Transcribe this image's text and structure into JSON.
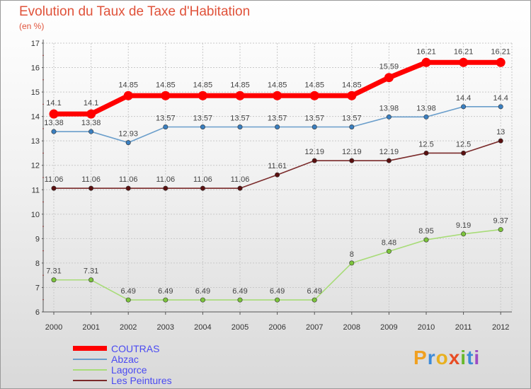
{
  "header": {
    "title": "Evolution du Taux de Taxe d'Habitation",
    "unit": "(en %)"
  },
  "logo": {
    "letters": [
      "P",
      "r",
      "o",
      "x",
      "i",
      "t",
      "i"
    ],
    "colors": [
      "#f0a020",
      "#3c8ad8",
      "#e8b020",
      "#e84c24",
      "#68b82c",
      "#3c8ad8",
      "#9c4cc4"
    ]
  },
  "chart_data": {
    "type": "line",
    "title": "Evolution du Taux de Taxe d'Habitation",
    "ylabel": "(en %)",
    "xlabel": "",
    "x": [
      "2000",
      "2001",
      "2002",
      "2003",
      "2004",
      "2005",
      "2006",
      "2007",
      "2008",
      "2009",
      "2010",
      "2011",
      "2012"
    ],
    "ylim": [
      6,
      17
    ],
    "yticks": [
      "6",
      "7",
      "8",
      "9",
      "10",
      "11",
      "12",
      "13",
      "14",
      "15",
      "16",
      "17"
    ],
    "grid": true,
    "legend_position": "bottom-left",
    "series": [
      {
        "name": "COUTRAS",
        "color": "#ff0000",
        "highlight": true,
        "values": [
          14.1,
          14.1,
          14.85,
          14.85,
          14.85,
          14.85,
          14.85,
          14.85,
          14.85,
          15.59,
          16.21,
          16.21,
          16.21
        ],
        "labels": [
          "14.1",
          "14.1",
          "14.85",
          "14.85",
          "14.85",
          "14.85",
          "14.85",
          "14.85",
          "14.85",
          "15.59",
          "16.21",
          "16.21",
          "16.21"
        ]
      },
      {
        "name": "Abzac",
        "color": "#6a9ecb",
        "marker": "#3a7fc0",
        "values": [
          13.38,
          13.38,
          12.93,
          13.57,
          13.57,
          13.57,
          13.57,
          13.57,
          13.57,
          13.98,
          13.98,
          14.4,
          14.4
        ],
        "labels": [
          "13.38",
          "13.38",
          "12.93",
          "13.57",
          "13.57",
          "13.57",
          "13.57",
          "13.57",
          "13.57",
          "13.98",
          "13.98",
          "14.4",
          "14.4"
        ]
      },
      {
        "name": "Lagorce",
        "color": "#a8dc78",
        "marker": "#7cc43c",
        "values": [
          7.31,
          7.31,
          6.49,
          6.49,
          6.49,
          6.49,
          6.49,
          6.49,
          8,
          8.48,
          8.95,
          9.19,
          9.37
        ],
        "labels": [
          "7.31",
          "7.31",
          "6.49",
          "6.49",
          "6.49",
          "6.49",
          "6.49",
          "6.49",
          "8",
          "8.48",
          "8.95",
          "9.19",
          "9.37"
        ]
      },
      {
        "name": "Les Peintures",
        "color": "#7a2a2a",
        "marker": "#5a1010",
        "values": [
          11.06,
          11.06,
          11.06,
          11.06,
          11.06,
          11.06,
          11.61,
          12.19,
          12.19,
          12.19,
          12.5,
          12.5,
          13
        ],
        "labels": [
          "11.06",
          "11.06",
          "11.06",
          "11.06",
          "11.06",
          "11.06",
          "11.61",
          "12.19",
          "12.19",
          "12.19",
          "12.5",
          "12.5",
          "13"
        ]
      }
    ]
  }
}
